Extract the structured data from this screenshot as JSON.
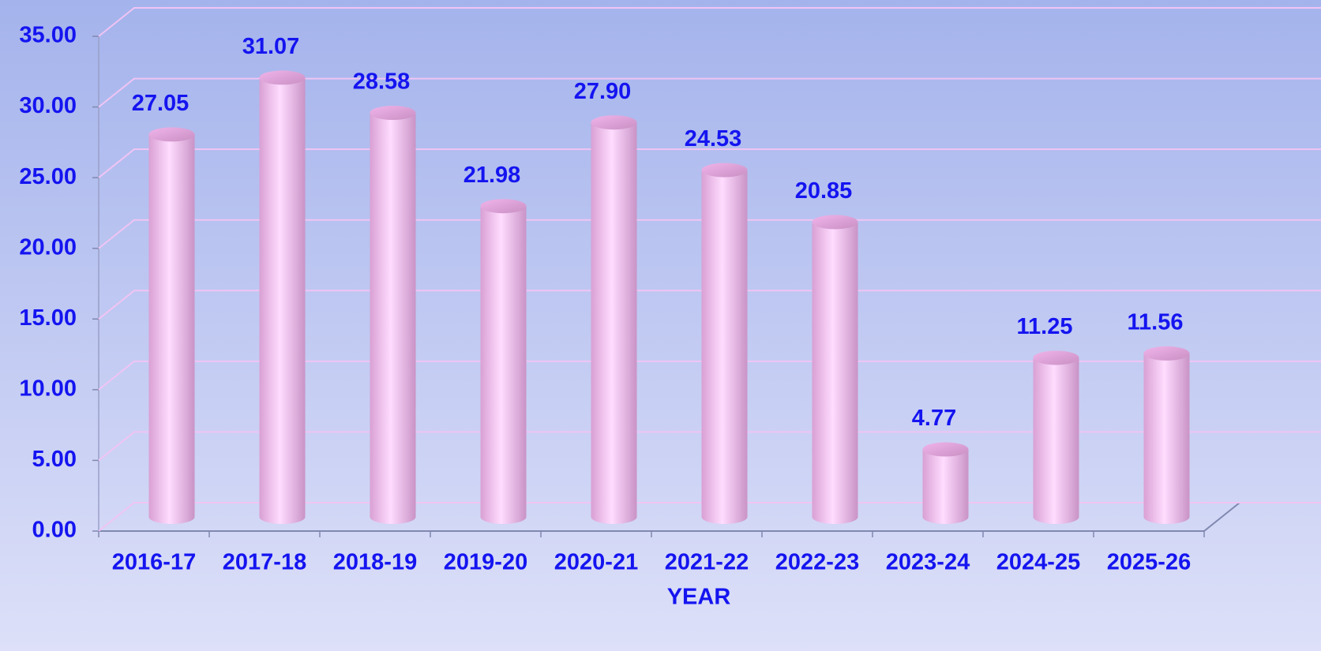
{
  "chart_data": {
    "type": "bar3d",
    "x_label": "YEAR",
    "categories": [
      "2016-17",
      "2017-18",
      "2018-19",
      "2019-20",
      "2020-21",
      "2021-22",
      "2022-23",
      "2023-24",
      "2024-25",
      "2025-26"
    ],
    "values": [
      27.05,
      31.07,
      28.58,
      21.98,
      27.9,
      24.53,
      20.85,
      4.77,
      11.25,
      11.56
    ],
    "value_labels": [
      "27.05",
      "31.07",
      "28.58",
      "21.98",
      "27.90",
      "24.53",
      "20.85",
      "4.77",
      "11.25",
      "11.56"
    ],
    "color": "#f4b8ec",
    "ylim": [
      0,
      35
    ],
    "yticks": [
      {
        "value": 0,
        "label": "0.00"
      },
      {
        "value": 5,
        "label": "5.00"
      },
      {
        "value": 10,
        "label": "10.00"
      },
      {
        "value": 15,
        "label": "15.00"
      },
      {
        "value": 20,
        "label": "20.00"
      },
      {
        "value": 25,
        "label": "25.00"
      },
      {
        "value": 30,
        "label": "30.00"
      },
      {
        "value": 35,
        "label": "35.00"
      }
    ],
    "grid": true
  }
}
